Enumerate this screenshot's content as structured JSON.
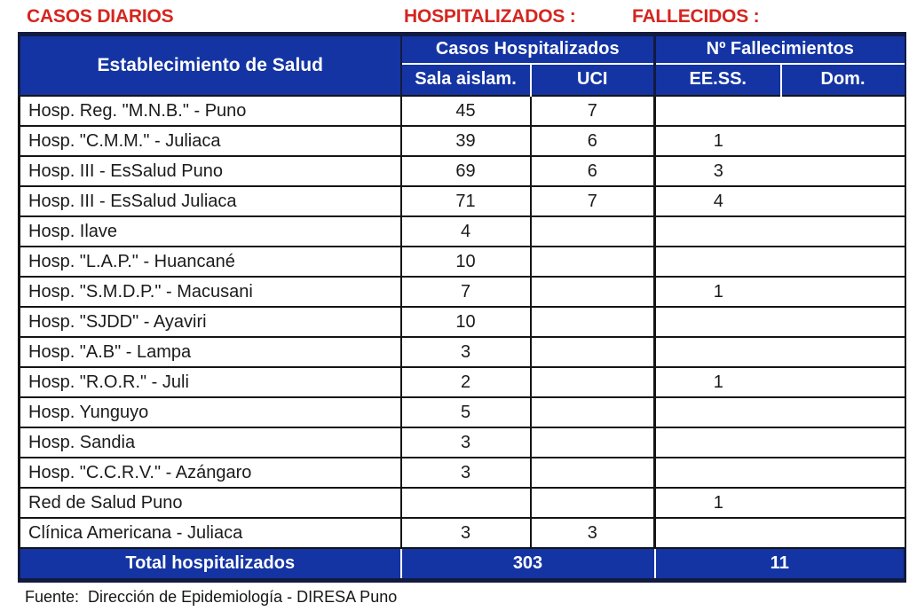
{
  "titles": {
    "casos_diarios": "CASOS DIARIOS",
    "hospitalizados": "HOSPITALIZADOS :",
    "fallecidos": "FALLECIDOS :"
  },
  "colors": {
    "header_blue": "#1434a3",
    "outer_border_navy": "#121a40",
    "title_red": "#d5261f",
    "grid_line": "#141414"
  },
  "table": {
    "establecimiento_header": "Establecimiento de Salud",
    "group_casos_header": "Casos Hospitalizados",
    "group_fallecimientos_header": "Nº Fallecimientos",
    "subheaders": [
      "Sala aislam.",
      "UCI",
      "EE.SS.",
      "Dom."
    ],
    "rows": [
      {
        "name": "Hosp. Reg. \"M.N.B.\" - Puno",
        "sala": "45",
        "uci": "7",
        "eess": "",
        "dom": ""
      },
      {
        "name": "Hosp. \"C.M.M.\" - Juliaca",
        "sala": "39",
        "uci": "6",
        "eess": "1",
        "dom": ""
      },
      {
        "name": "Hosp. III - EsSalud Puno",
        "sala": "69",
        "uci": "6",
        "eess": "3",
        "dom": ""
      },
      {
        "name": "Hosp. III - EsSalud Juliaca",
        "sala": "71",
        "uci": "7",
        "eess": "4",
        "dom": ""
      },
      {
        "name": "Hosp. Ilave",
        "sala": "4",
        "uci": "",
        "eess": "",
        "dom": ""
      },
      {
        "name": "Hosp. \"L.A.P.\" - Huancané",
        "sala": "10",
        "uci": "",
        "eess": "",
        "dom": ""
      },
      {
        "name": "Hosp. \"S.M.D.P.\" - Macusani",
        "sala": "7",
        "uci": "",
        "eess": "1",
        "dom": ""
      },
      {
        "name": "Hosp. \"SJDD\" - Ayaviri",
        "sala": "10",
        "uci": "",
        "eess": "",
        "dom": ""
      },
      {
        "name": "Hosp. \"A.B\" - Lampa",
        "sala": "3",
        "uci": "",
        "eess": "",
        "dom": ""
      },
      {
        "name": "Hosp. \"R.O.R.\" - Juli",
        "sala": "2",
        "uci": "",
        "eess": "1",
        "dom": ""
      },
      {
        "name": "Hosp. Yunguyo",
        "sala": "5",
        "uci": "",
        "eess": "",
        "dom": ""
      },
      {
        "name": "Hosp. Sandia",
        "sala": "3",
        "uci": "",
        "eess": "",
        "dom": ""
      },
      {
        "name": "Hosp. \"C.C.R.V.\" - Azángaro",
        "sala": "3",
        "uci": "",
        "eess": "",
        "dom": ""
      },
      {
        "name": "Red de Salud Puno",
        "sala": "",
        "uci": "",
        "eess": "1",
        "dom": ""
      },
      {
        "name": "Clínica Americana - Juliaca",
        "sala": "3",
        "uci": "3",
        "eess": "",
        "dom": ""
      }
    ],
    "total": {
      "label": "Total hospitalizados",
      "hospitalizados": "303",
      "fallecidos": "11"
    }
  },
  "footer": {
    "fuente": "Fuente:  Dirección de Epidemiología - DIRESA Puno"
  }
}
